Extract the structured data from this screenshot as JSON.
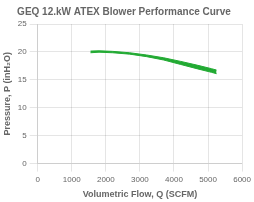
{
  "chart_data": {
    "type": "band",
    "title": "GEQ 12.kW ATEX Blower Performance Curve",
    "x_label": "Volumetric Flow, Q (SCFM)",
    "y_label": "Pressure, P (inH₂O)",
    "x": [
      1550,
      1800,
      2200,
      2700,
      3200,
      3700,
      4200,
      4700,
      5100,
      5250
    ],
    "series": [
      {
        "color": "#22aa33",
        "values": [
          20.15,
          20.2,
          20.1,
          19.85,
          19.45,
          18.95,
          18.3,
          17.6,
          17.0,
          16.75
        ]
      },
      {
        "color": "#22aa33",
        "values": [
          19.85,
          19.95,
          19.85,
          19.6,
          19.15,
          18.55,
          17.75,
          16.95,
          16.35,
          16.1
        ]
      }
    ],
    "xlim": [
      0,
      6000
    ],
    "xticks": [
      0,
      1000,
      2000,
      3000,
      4000,
      5000,
      6000
    ],
    "ylim": [
      0,
      25
    ],
    "yticks": [
      0,
      5,
      10,
      15,
      20,
      25
    ],
    "grid": true
  }
}
